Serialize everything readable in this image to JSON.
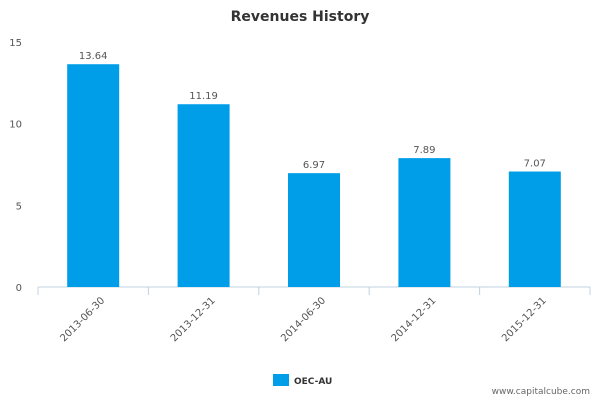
{
  "chart_data": {
    "type": "bar",
    "title": "Revenues History",
    "categories": [
      "2013-06-30",
      "2013-12-31",
      "2014-06-30",
      "2014-12-31",
      "2015-12-31"
    ],
    "series": [
      {
        "name": "OEC-AU",
        "values": [
          13.64,
          11.19,
          6.97,
          7.89,
          7.07
        ]
      }
    ],
    "value_labels": [
      "13.64",
      "11.19",
      "6.97",
      "7.89",
      "7.07"
    ],
    "ylim": [
      0,
      15
    ],
    "yticks": [
      0,
      5,
      10,
      15
    ],
    "xlabel": "",
    "ylabel": "",
    "grid": false,
    "legend_position": "bottom-center"
  },
  "colors": {
    "bar": "#009ee8",
    "title": "#333333",
    "axis_text": "#555555",
    "axis_line": "#c0d0e0"
  },
  "watermark": "www.capitalcube.com"
}
